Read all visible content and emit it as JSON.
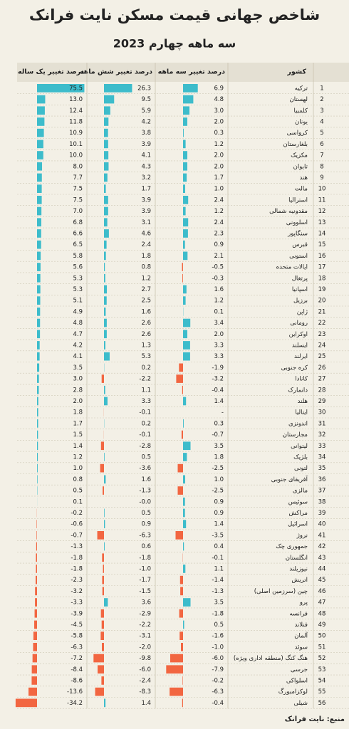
{
  "chart_data": {
    "type": "table-bar",
    "title": "شاخص جهانی قیمت مسکن نایت فرانک",
    "subtitle": "سه ماهه چهارم 2023",
    "category_header": "کشور",
    "source": "منبع: نایت فرانک",
    "positive_color": "#3dbccb",
    "negative_color": "#f26641",
    "ranks": [
      1,
      2,
      3,
      4,
      5,
      6,
      7,
      8,
      9,
      10,
      11,
      12,
      13,
      14,
      15,
      16,
      17,
      18,
      19,
      20,
      21,
      22,
      23,
      24,
      25,
      26,
      27,
      28,
      29,
      30,
      31,
      32,
      33,
      34,
      35,
      36,
      37,
      38,
      39,
      40,
      41,
      42,
      43,
      44,
      45,
      46,
      47,
      48,
      49,
      50,
      51,
      52,
      53,
      54,
      55,
      56
    ],
    "categories": [
      "ترکیه",
      "لهستان",
      "کلمبیا",
      "یونان",
      "کرواسی",
      "بلغارستان",
      "مکزیک",
      "تایوان",
      "هند",
      "مالت",
      "استرالیا",
      "مقدونیه شمالی",
      "اسلوونی",
      "سنگاپور",
      "قبرس",
      "استونی",
      "ایالات متحده",
      "پرتغال",
      "اسپانیا",
      "برزیل",
      "ژاپن",
      "رومانی",
      "اوکراین",
      "ایسلند",
      "ایرلند",
      "کره جنوبی",
      "کانادا",
      "دانمارک",
      "هلند",
      "ایتالیا",
      "اندونزی",
      "مجارستان",
      "لیتوانی",
      "بلژیک",
      "لتونی",
      "آفریقای جنوبی",
      "مالزی",
      "سوئیس",
      "مراکش",
      "اسرائیل",
      "نروژ",
      "جمهوری چک",
      "انگلستان",
      "نیوزیلند",
      "اتریش",
      "چین (سرزمین اصلی)",
      "پرو",
      "فرانسه",
      "فنلاند",
      "آلمان",
      "سوئد",
      "هنگ کنگ (منطقه اداری ویژه)",
      "جرسی",
      "اسلواکی",
      "لوکزامبورگ",
      "شیلی"
    ],
    "series": [
      {
        "name": "درصد تغییر سه ماهه",
        "values": [
          6.9,
          4.8,
          3.0,
          2.0,
          0.3,
          1.2,
          2.0,
          2.0,
          1.7,
          1.0,
          2.4,
          1.2,
          2.4,
          2.3,
          0.9,
          2.1,
          -0.5,
          -0.3,
          1.6,
          1.2,
          0.1,
          3.4,
          2.0,
          3.3,
          3.3,
          -1.9,
          -3.2,
          -0.4,
          1.4,
          null,
          0.3,
          -0.7,
          3.5,
          1.8,
          -2.5,
          1.0,
          -2.5,
          0.9,
          0.9,
          1.4,
          -3.5,
          0.4,
          -0.1,
          1.1,
          -1.4,
          -1.3,
          3.5,
          -1.8,
          0.5,
          -1.6,
          -1.0,
          -6.0,
          -7.9,
          -0.2,
          -6.3,
          -0.4
        ],
        "value_labels": [
          "6.9",
          "4.8",
          "3.0",
          "2.0",
          "0.3",
          "1.2",
          "2.0",
          "2.0",
          "1.7",
          "1.0",
          "2.4",
          "1.2",
          "2.4",
          "2.3",
          "0.9",
          "2.1",
          "-0.5",
          "-0.3",
          "1.6",
          "1.2",
          "0.1",
          "3.4",
          "2.0",
          "3.3",
          "3.3",
          "-1.9",
          "-3.2",
          "-0.4",
          "1.4",
          "-",
          "0.3",
          "-0.7",
          "3.5",
          "1.8",
          "-2.5",
          "1.0",
          "-2.5",
          "0.9",
          "0.9",
          "1.4",
          "-3.5",
          "0.4",
          "-0.1",
          "1.1",
          "-1.4",
          "-1.3",
          "3.5",
          "-1.8",
          "0.5",
          "-1.6",
          "-1.0",
          "-6.0",
          "-7.9",
          "-0.2",
          "-6.3",
          "-0.4"
        ]
      },
      {
        "name": "درصد تغییر شش ماهه",
        "values": [
          26.3,
          9.5,
          5.9,
          4.2,
          3.8,
          3.9,
          4.1,
          4.3,
          3.2,
          1.7,
          3.9,
          3.9,
          3.1,
          4.6,
          2.4,
          1.8,
          0.8,
          1.2,
          2.7,
          2.5,
          1.6,
          2.6,
          2.6,
          1.3,
          5.3,
          0.2,
          -2.2,
          1.1,
          3.3,
          -0.1,
          0.2,
          -0.1,
          -2.8,
          0.5,
          -3.6,
          1.6,
          -1.3,
          -0.0,
          0.5,
          0.9,
          -6.3,
          0.6,
          -1.8,
          -1.0,
          -1.7,
          -1.5,
          3.6,
          -2.9,
          -2.2,
          -3.1,
          -2.0,
          -9.8,
          -6.0,
          -2.4,
          -8.3,
          1.4
        ],
        "value_labels": [
          "26.3",
          "9.5",
          "5.9",
          "4.2",
          "3.8",
          "3.9",
          "4.1",
          "4.3",
          "3.2",
          "1.7",
          "3.9",
          "3.9",
          "3.1",
          "4.6",
          "2.4",
          "1.8",
          "0.8",
          "1.2",
          "2.7",
          "2.5",
          "1.6",
          "2.6",
          "2.6",
          "1.3",
          "5.3",
          "0.2",
          "-2.2",
          "1.1",
          "3.3",
          "-0.1",
          "0.2",
          "-0.1",
          "-2.8",
          "0.5",
          "-3.6",
          "1.6",
          "-1.3",
          "-0.0",
          "0.5",
          "0.9",
          "-6.3",
          "0.6",
          "-1.8",
          "-1.0",
          "-1.7",
          "-1.5",
          "3.6",
          "-2.9",
          "-2.2",
          "-3.1",
          "-2.0",
          "-9.8",
          "-6.0",
          "-2.4",
          "-8.3",
          "1.4"
        ]
      },
      {
        "name": "درصد تغییر یک ساله",
        "values": [
          75.5,
          13.0,
          12.4,
          11.8,
          10.9,
          10.1,
          10.0,
          8.0,
          7.7,
          7.5,
          7.5,
          7.0,
          6.8,
          6.6,
          6.5,
          5.8,
          5.6,
          5.3,
          5.3,
          5.1,
          4.9,
          4.8,
          4.7,
          4.2,
          4.1,
          3.5,
          3.0,
          2.8,
          2.0,
          1.8,
          1.7,
          1.5,
          1.4,
          1.2,
          1.0,
          0.8,
          0.5,
          0.1,
          -0.2,
          -0.6,
          -0.7,
          -1.3,
          -1.8,
          -1.8,
          -2.3,
          -3.2,
          -3.3,
          -3.9,
          -4.5,
          -5.8,
          -6.3,
          -7.2,
          -8.4,
          -8.6,
          -13.6,
          -34.2
        ],
        "value_labels": [
          "75.5",
          "13.0",
          "12.4",
          "11.8",
          "10.9",
          "10.1",
          "10.0",
          "8.0",
          "7.7",
          "7.5",
          "7.5",
          "7.0",
          "6.8",
          "6.6",
          "6.5",
          "5.8",
          "5.6",
          "5.3",
          "5.3",
          "5.1",
          "4.9",
          "4.8",
          "4.7",
          "4.2",
          "4.1",
          "3.5",
          "3.0",
          "2.8",
          "2.0",
          "1.8",
          "1.7",
          "1.5",
          "1.4",
          "1.2",
          "1.0",
          "0.8",
          "0.5",
          "0.1",
          "-0.2",
          "-0.6",
          "-0.7",
          "-1.3",
          "-1.8",
          "-1.8",
          "-2.3",
          "-3.2",
          "-3.3",
          "-3.9",
          "-4.5",
          "-5.8",
          "-6.3",
          "-7.2",
          "-8.4",
          "-8.6",
          "-13.6",
          "-34.2"
        ]
      }
    ]
  }
}
